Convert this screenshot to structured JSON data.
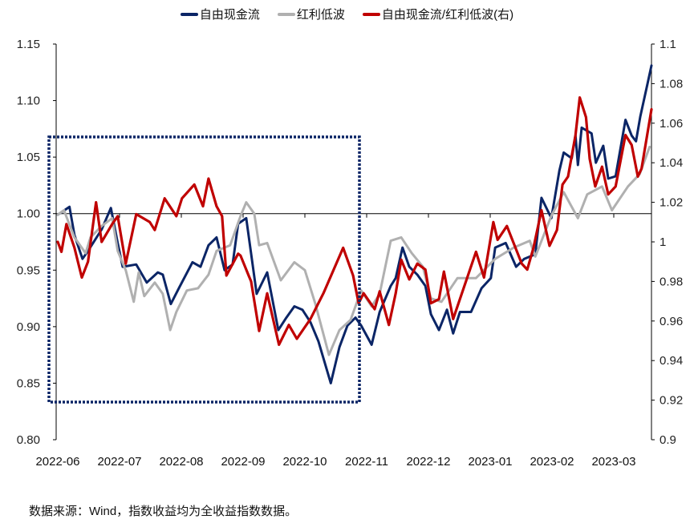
{
  "chart_data": {
    "type": "line",
    "title": "",
    "xlabel": "",
    "ylabel": "",
    "x_unit": "months since 2022-06 start",
    "x_ticks": [
      "2022-06",
      "2022-07",
      "2022-08",
      "2022-09",
      "2022-10",
      "2022-11",
      "2022-12",
      "2023-01",
      "2023-02",
      "2023-03"
    ],
    "ylim_left": [
      0.8,
      1.15
    ],
    "yticks_left": [
      "0.80",
      "0.85",
      "0.90",
      "0.95",
      "1.00",
      "1.05",
      "1.10",
      "1.15"
    ],
    "ylim_right": [
      0.9,
      1.1
    ],
    "yticks_right": [
      "0.9",
      "0.92",
      "0.94",
      "0.96",
      "0.98",
      "1",
      "1.02",
      "1.04",
      "1.06",
      "1.08",
      "1.1"
    ],
    "reference_line_left": 1.0,
    "grid": false,
    "legend_position": "top-center",
    "annotation": "dotted box highlighting 2022-06 to 2022-11",
    "series": [
      {
        "name": "自由现金流",
        "axis": "left",
        "color": "#0b2566",
        "x": [
          0,
          0.19,
          0.27,
          0.4,
          0.49,
          0.71,
          0.86,
          0.97,
          1.05,
          1.27,
          1.44,
          1.62,
          1.7,
          1.83,
          1.96,
          2.18,
          2.31,
          2.44,
          2.57,
          2.7,
          2.83,
          2.92,
          3.05,
          3.22,
          3.39,
          3.57,
          3.7,
          3.83,
          3.96,
          4.09,
          4.22,
          4.42,
          4.56,
          4.69,
          4.82,
          4.91,
          5.08,
          5.21,
          5.39,
          5.47,
          5.58,
          5.69,
          5.82,
          5.95,
          6.04,
          6.17,
          6.3,
          6.4,
          6.51,
          6.69,
          6.86,
          7.01,
          7.08,
          7.25,
          7.42,
          7.55,
          7.73,
          7.83,
          7.99,
          8.12,
          8.19,
          8.32,
          8.38,
          8.42,
          8.48,
          8.64,
          8.71,
          8.83,
          8.91,
          9.03,
          9.19,
          9.29,
          9.36,
          9.43,
          9.55,
          9.61
        ],
        "y": [
          0.999,
          1.006,
          0.981,
          0.96,
          0.967,
          0.986,
          1.005,
          0.974,
          0.953,
          0.955,
          0.939,
          0.948,
          0.946,
          0.92,
          0.934,
          0.957,
          0.953,
          0.972,
          0.979,
          0.95,
          0.955,
          0.991,
          0.996,
          0.929,
          0.948,
          0.897,
          0.908,
          0.918,
          0.915,
          0.904,
          0.887,
          0.85,
          0.882,
          0.901,
          0.908,
          0.901,
          0.884,
          0.913,
          0.936,
          0.943,
          0.97,
          0.953,
          0.946,
          0.936,
          0.911,
          0.897,
          0.915,
          0.894,
          0.913,
          0.913,
          0.934,
          0.943,
          0.97,
          0.974,
          0.953,
          0.96,
          0.964,
          1.014,
          0.996,
          1.038,
          1.054,
          1.049,
          1.069,
          1.043,
          1.076,
          1.071,
          1.045,
          1.06,
          1.031,
          1.033,
          1.083,
          1.069,
          1.064,
          1.086,
          1.116,
          1.131
        ]
      },
      {
        "name": "红利低波",
        "axis": "left",
        "color": "#b0b0b0",
        "x": [
          0,
          0.1,
          0.27,
          0.45,
          0.53,
          0.71,
          0.88,
          0.97,
          1.1,
          1.23,
          1.31,
          1.4,
          1.57,
          1.7,
          1.82,
          1.92,
          2.09,
          2.27,
          2.44,
          2.57,
          2.79,
          2.96,
          3.05,
          3.18,
          3.26,
          3.39,
          3.61,
          3.83,
          4.0,
          4.17,
          4.39,
          4.56,
          4.74,
          4.91,
          5.08,
          5.21,
          5.39,
          5.56,
          5.73,
          5.91,
          6.04,
          6.21,
          6.47,
          6.77,
          7.08,
          7.38,
          7.64,
          7.73,
          7.99,
          8.19,
          8.42,
          8.57,
          8.81,
          8.97,
          9.23,
          9.42,
          9.58
        ],
        "y": [
          0.999,
          1.003,
          0.979,
          0.965,
          0.979,
          0.989,
          0.996,
          0.967,
          0.95,
          0.922,
          0.948,
          0.927,
          0.939,
          0.929,
          0.897,
          0.913,
          0.932,
          0.934,
          0.946,
          0.967,
          0.972,
          0.998,
          1.01,
          1.0,
          0.972,
          0.974,
          0.941,
          0.957,
          0.95,
          0.92,
          0.875,
          0.897,
          0.906,
          0.932,
          0.918,
          0.929,
          0.976,
          0.979,
          0.965,
          0.953,
          0.925,
          0.922,
          0.943,
          0.943,
          0.96,
          0.97,
          0.976,
          0.962,
          0.998,
          1.019,
          0.996,
          1.017,
          1.024,
          1.003,
          1.024,
          1.035,
          1.059
        ]
      },
      {
        "name": "自由现金流/红利低波(右)",
        "axis": "right",
        "color": "#c00000",
        "x": [
          0,
          0.06,
          0.14,
          0.27,
          0.39,
          0.49,
          0.62,
          0.71,
          0.88,
          0.97,
          1.1,
          1.27,
          1.49,
          1.57,
          1.73,
          1.92,
          2.01,
          2.21,
          2.35,
          2.44,
          2.57,
          2.66,
          2.73,
          2.92,
          2.96,
          3.09,
          3.13,
          3.26,
          3.39,
          3.58,
          3.74,
          3.87,
          4.09,
          4.3,
          4.62,
          4.78,
          4.87,
          4.95,
          5.13,
          5.21,
          5.36,
          5.47,
          5.56,
          5.69,
          5.82,
          5.95,
          6.04,
          6.17,
          6.25,
          6.4,
          6.77,
          6.9,
          7.05,
          7.12,
          7.27,
          7.51,
          7.6,
          7.7,
          7.83,
          7.96,
          8.08,
          8.17,
          8.26,
          8.38,
          8.45,
          8.55,
          8.61,
          8.7,
          8.81,
          8.91,
          9.03,
          9.19,
          9.29,
          9.39,
          9.45,
          9.61
        ],
        "y": [
          1.0,
          0.995,
          1.009,
          0.997,
          0.982,
          0.99,
          1.02,
          1.0,
          1.009,
          1.013,
          0.989,
          1.014,
          1.01,
          1.006,
          1.022,
          1.013,
          1.022,
          1.029,
          1.018,
          1.032,
          1.018,
          1.013,
          0.983,
          0.994,
          0.993,
          0.983,
          0.98,
          0.955,
          0.974,
          0.948,
          0.958,
          0.951,
          0.961,
          0.974,
          0.997,
          0.983,
          0.969,
          0.974,
          0.966,
          0.975,
          0.958,
          0.974,
          0.991,
          0.981,
          0.989,
          0.986,
          0.969,
          0.971,
          0.985,
          0.961,
          0.995,
          0.982,
          1.01,
          1.001,
          1.008,
          0.989,
          0.986,
          0.997,
          1.016,
          0.998,
          1.006,
          1.029,
          1.033,
          1.054,
          1.073,
          1.063,
          1.042,
          1.028,
          1.038,
          1.024,
          1.028,
          1.054,
          1.049,
          1.033,
          1.037,
          1.067
        ]
      }
    ]
  },
  "source_note": "数据来源：Wind，指数收益均为全收益指数数据。"
}
